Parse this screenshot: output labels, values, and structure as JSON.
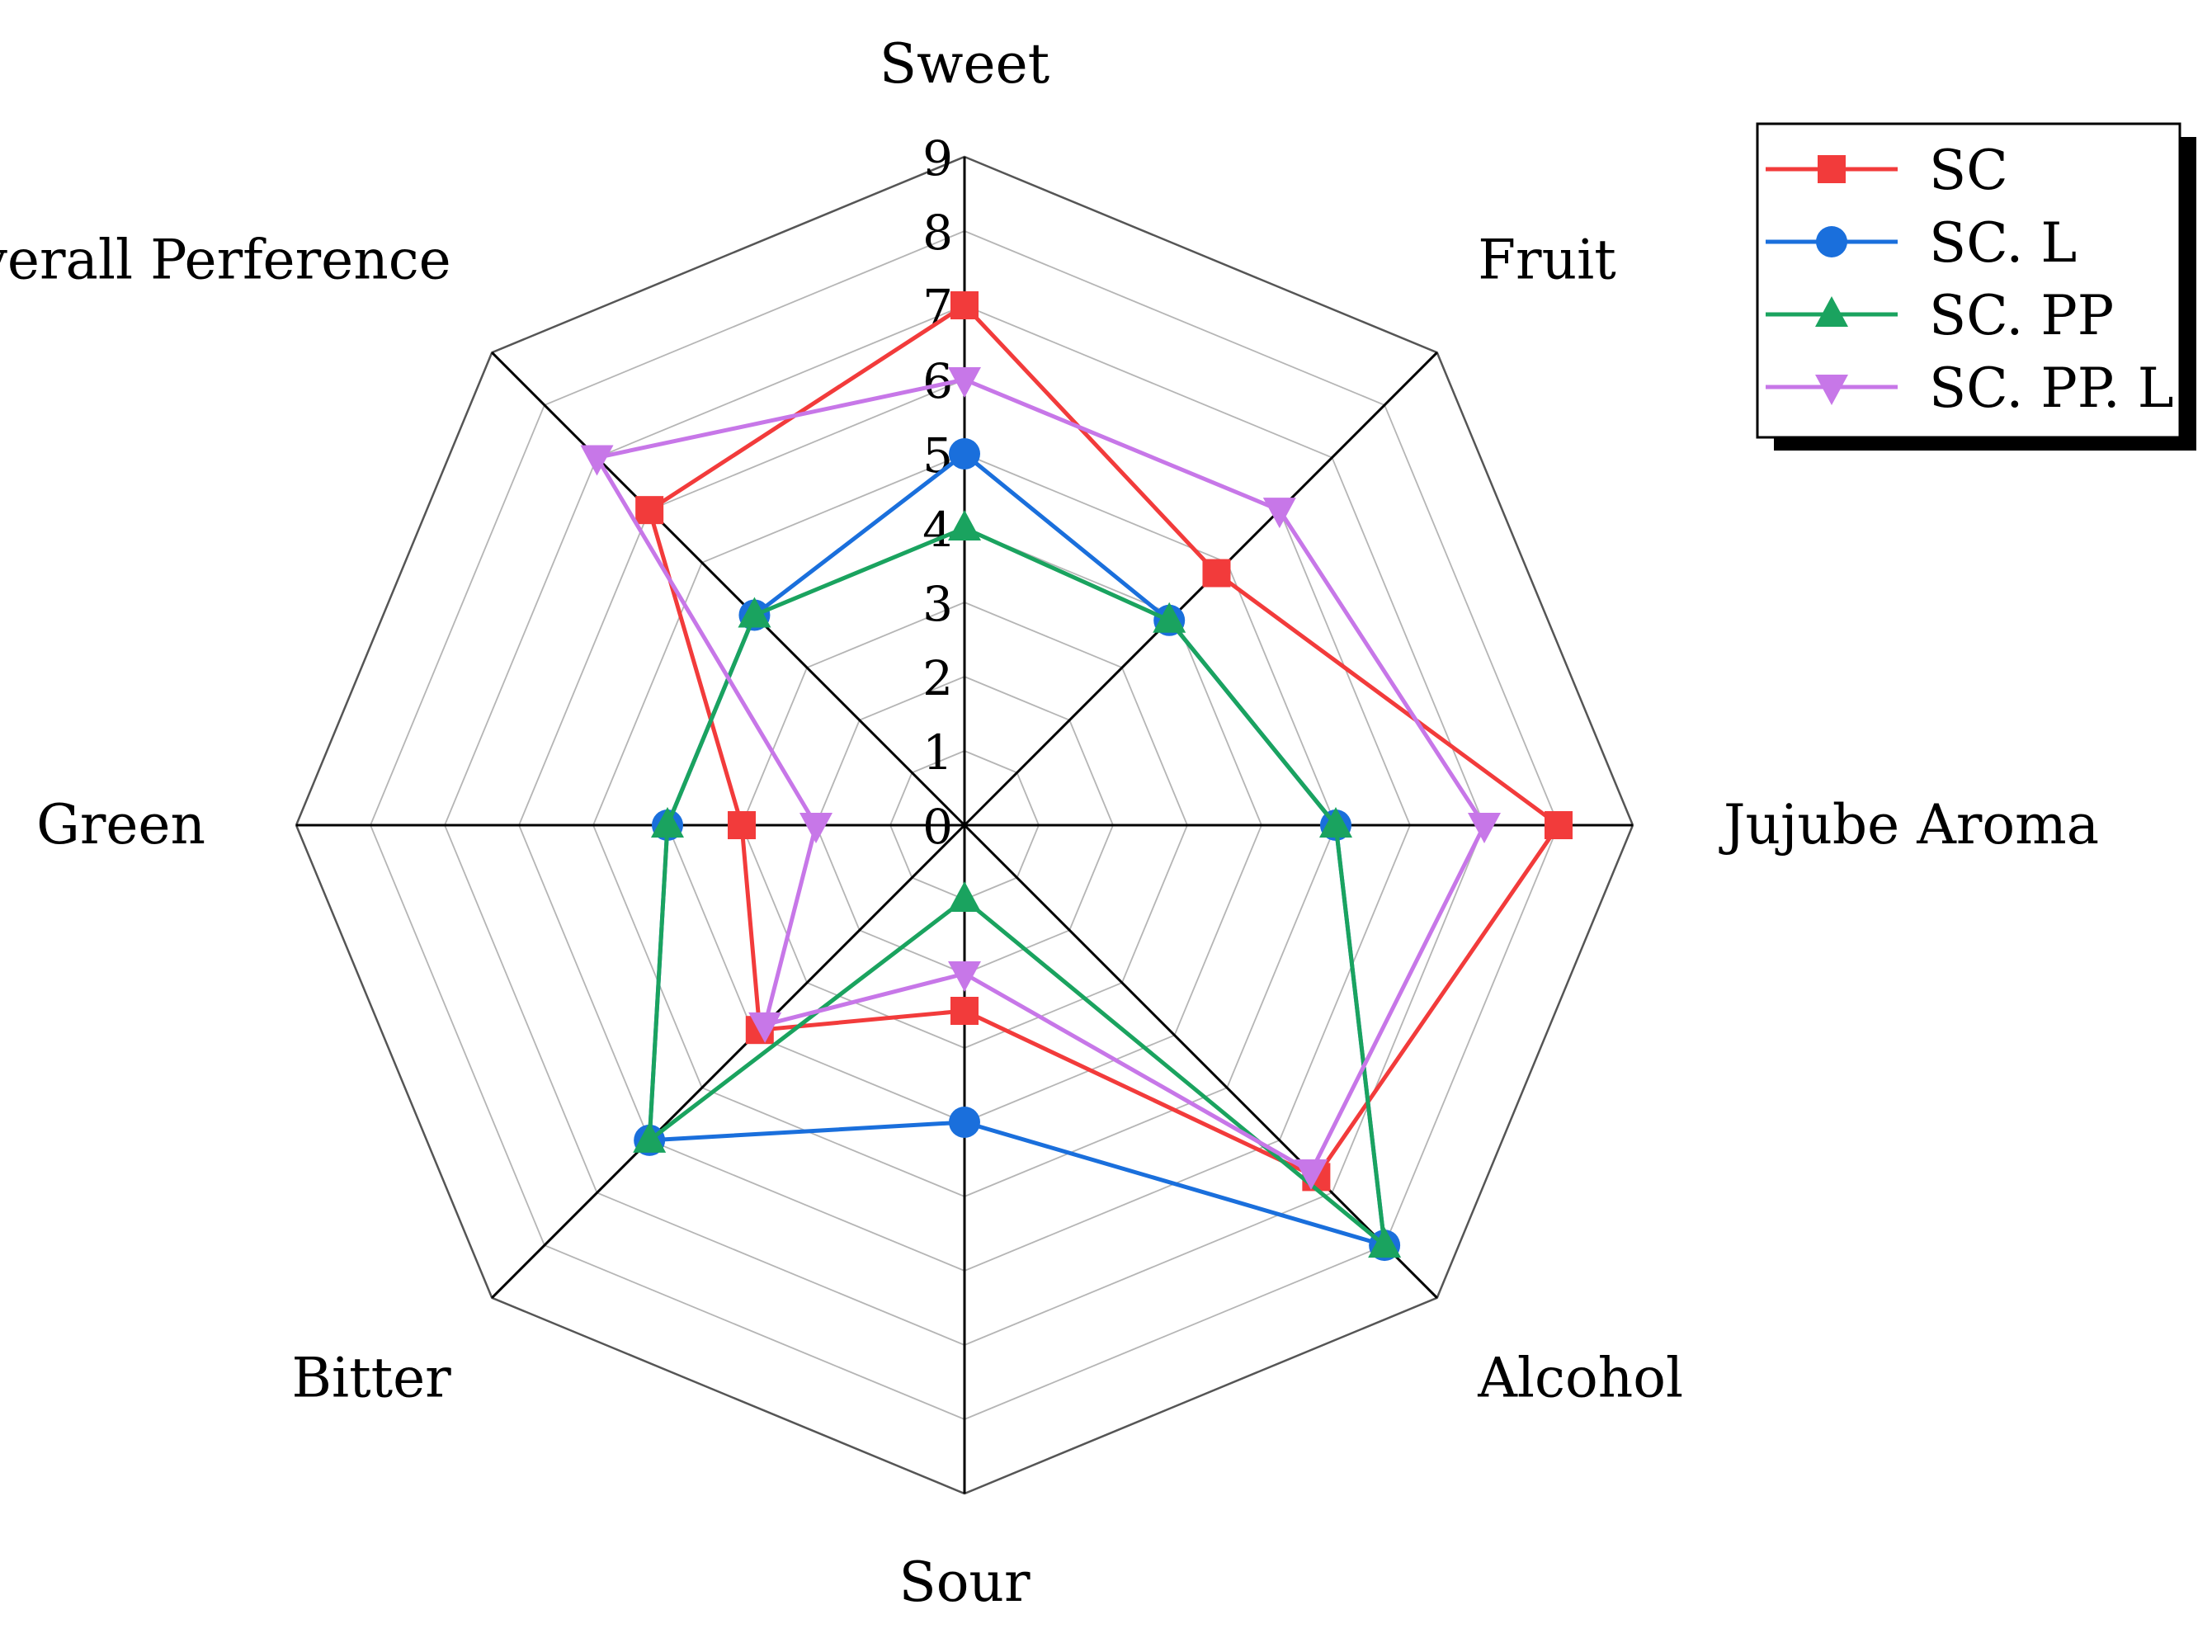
{
  "chart_data": {
    "type": "radar",
    "title": "",
    "axes": [
      "Sweet",
      "Fruit",
      "Jujube Aroma",
      "Alcohol",
      "Sour",
      "Bitter",
      "Green",
      "Overall Perference"
    ],
    "scale": {
      "min": 0,
      "max": 9,
      "ticks": [
        "0",
        "1",
        "2",
        "3",
        "4",
        "5",
        "6",
        "7",
        "8",
        "9"
      ]
    },
    "grid": true,
    "legend_position": "top-right",
    "series": [
      {
        "name": "SC",
        "color": "#f23b3b",
        "marker": "square",
        "values": [
          7,
          4.8,
          8,
          6.7,
          2.5,
          3.9,
          3,
          6
        ]
      },
      {
        "name": "SC. L",
        "color": "#1a6fdc",
        "marker": "circle",
        "values": [
          5,
          3.9,
          5,
          8,
          4,
          6,
          4,
          4
        ]
      },
      {
        "name": "SC. PP",
        "color": "#1aa35f",
        "marker": "triangle-up",
        "values": [
          4,
          3.9,
          5,
          8,
          1,
          6,
          4,
          4
        ]
      },
      {
        "name": "SC. PP. L",
        "color": "#c777e8",
        "marker": "triangle-down",
        "values": [
          6,
          6,
          7,
          6.6,
          2,
          3.8,
          2,
          7
        ]
      }
    ]
  }
}
